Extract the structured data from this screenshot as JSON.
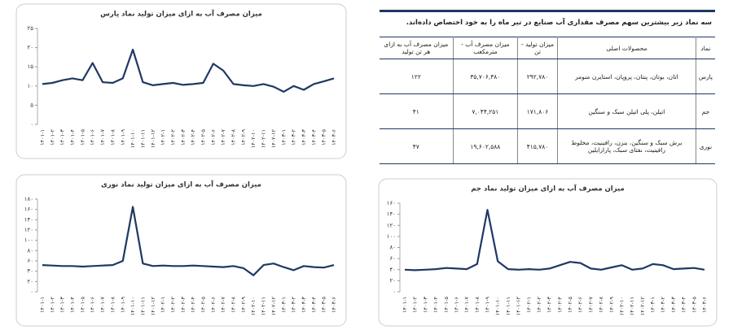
{
  "chart_data": [
    {
      "type": "line",
      "title": "میزان مصرف آب به ازای میزان تولید نماد پارس",
      "color": "#1f3864",
      "categories": [
        "۱۴۰۱-۱",
        "۱۴۰۱-۲",
        "۱۴۰۱-۳",
        "۱۴۰۱-۴",
        "۱۴۰۱-۵",
        "۱۴۰۱-۶",
        "۱۴۰۱-۷",
        "۱۴۰۱-۸",
        "۱۴۰۱-۹",
        "۱۴۰۱-۱۰",
        "۱۴۰۱-۱۱",
        "۱۴۰۱-۱۲",
        "۱۴۰۲-۱",
        "۱۴۰۲-۲",
        "۱۴۰۲-۳",
        "۱۴۰۲-۴",
        "۱۴۰۲-۵",
        "۱۴۰۲-۶",
        "۱۴۰۲-۷",
        "۱۴۰۲-۸",
        "۱۴۰۲-۹",
        "۱۴۰۲-۱۰",
        "۱۴۰۲-۱۱",
        "۱۴۰۲-۱۲",
        "۱۴۰۳-۱",
        "۱۴۰۳-۲",
        "۱۴۰۳-۳",
        "۱۴۰۳-۴",
        "۱۴۰۳-۵",
        "۱۴۰۳-۶"
      ],
      "values": [
        10.5,
        10.8,
        11.5,
        12,
        11.5,
        16,
        11,
        10.8,
        12,
        19.5,
        11,
        10.2,
        10.5,
        10.8,
        10.3,
        10.5,
        10.8,
        15.8,
        14,
        10.5,
        10.2,
        10,
        10.5,
        9.8,
        8.5,
        10,
        9,
        10.5,
        11.2,
        12
      ],
      "ylim": [
        0,
        25
      ],
      "yticks": [
        {
          "value": 0,
          "label": "۰"
        },
        {
          "value": 5,
          "label": "۵"
        },
        {
          "value": 10,
          "label": "۱۰"
        },
        {
          "value": 15,
          "label": "۱۵"
        },
        {
          "value": 20,
          "label": "۲۰"
        },
        {
          "value": 25,
          "label": "۲۵"
        }
      ]
    },
    {
      "type": "line",
      "title": "میزان مصرف آب به ازای میزان تولید نماد نوری",
      "color": "#1f3864",
      "categories": [
        "۱۴۰۱-۱",
        "۱۴۰۱-۲",
        "۱۴۰۱-۳",
        "۱۴۰۱-۴",
        "۱۴۰۱-۵",
        "۱۴۰۱-۶",
        "۱۴۰۱-۷",
        "۱۴۰۱-۸",
        "۱۴۰۱-۹",
        "۱۴۰۱-۱۰",
        "۱۴۰۱-۱۱",
        "۱۴۰۱-۱۲",
        "۱۴۰۲-۱",
        "۱۴۰۲-۲",
        "۱۴۰۲-۳",
        "۱۴۰۲-۴",
        "۱۴۰۲-۵",
        "۱۴۰۲-۶",
        "۱۴۰۲-۷",
        "۱۴۰۲-۸",
        "۱۴۰۲-۹",
        "۱۴۰۲-۱۰",
        "۱۴۰۲-۱۱",
        "۱۴۰۲-۱۲",
        "۱۴۰۳-۱",
        "۱۴۰۳-۲",
        "۱۴۰۳-۳",
        "۱۴۰۳-۴",
        "۱۴۰۳-۵",
        "۱۴۰۳-۶"
      ],
      "values": [
        52,
        51,
        50,
        50,
        49,
        50,
        51,
        52,
        60,
        165,
        55,
        50,
        51,
        50,
        50,
        51,
        50,
        49,
        48,
        50,
        46,
        32,
        52,
        55,
        48,
        42,
        50,
        48,
        47,
        52
      ],
      "ylim": [
        0,
        180
      ],
      "yticks": [
        {
          "value": 0,
          "label": "۰"
        },
        {
          "value": 20,
          "label": "۲۰"
        },
        {
          "value": 40,
          "label": "۴۰"
        },
        {
          "value": 60,
          "label": "۶۰"
        },
        {
          "value": 80,
          "label": "۸۰"
        },
        {
          "value": 100,
          "label": "۱۰۰"
        },
        {
          "value": 120,
          "label": "۱۲۰"
        },
        {
          "value": 140,
          "label": "۱۴۰"
        },
        {
          "value": 160,
          "label": "۱۶۰"
        },
        {
          "value": 180,
          "label": "۱۸۰"
        }
      ]
    },
    {
      "type": "line",
      "title": "میزان مصرف آب به ازای میزان تولید نماد جم",
      "color": "#1f3864",
      "categories": [
        "۱۴۰۱-۱",
        "۱۴۰۱-۲",
        "۱۴۰۱-۳",
        "۱۴۰۱-۴",
        "۱۴۰۱-۵",
        "۱۴۰۱-۶",
        "۱۴۰۱-۷",
        "۱۴۰۱-۸",
        "۱۴۰۱-۹",
        "۱۴۰۱-۱۰",
        "۱۴۰۱-۱۱",
        "۱۴۰۱-۱۲",
        "۱۴۰۲-۱",
        "۱۴۰۲-۲",
        "۱۴۰۲-۳",
        "۱۴۰۲-۴",
        "۱۴۰۲-۵",
        "۱۴۰۲-۶",
        "۱۴۰۲-۷",
        "۱۴۰۲-۸",
        "۱۴۰۲-۹",
        "۱۴۰۲-۱۰",
        "۱۴۰۲-۱۱",
        "۱۴۰۲-۱۲",
        "۱۴۰۳-۱",
        "۱۴۰۳-۲",
        "۱۴۰۳-۳",
        "۱۴۰۳-۴",
        "۱۴۰۳-۵",
        "۱۴۰۳-۶"
      ],
      "values": [
        40,
        39,
        40,
        41,
        43,
        42,
        41,
        50,
        148,
        55,
        41,
        40,
        41,
        40,
        42,
        48,
        54,
        52,
        42,
        40,
        44,
        48,
        40,
        42,
        50,
        48,
        41,
        42,
        43,
        40
      ],
      "ylim": [
        0,
        160
      ],
      "yticks": [
        {
          "value": 0,
          "label": "۰"
        },
        {
          "value": 20,
          "label": "۲۰"
        },
        {
          "value": 40,
          "label": "۴۰"
        },
        {
          "value": 60,
          "label": "۶۰"
        },
        {
          "value": 80,
          "label": "۸۰"
        },
        {
          "value": 100,
          "label": "۱۰۰"
        },
        {
          "value": 120,
          "label": "۱۲۰"
        },
        {
          "value": 140,
          "label": "۱۴۰"
        },
        {
          "value": 160,
          "label": "۱۶۰"
        }
      ]
    }
  ],
  "table": {
    "caption": "سه نماد زیر بیشترین سهم مصرف مقداری آب صنایع در تیر ماه را به خود اختصاص داده‌اند.",
    "header": [
      "نماد",
      "محصولات اصلی",
      "میزان تولید - تن",
      "میزان مصرف آب - مترمکعب",
      "میزان مصرف آب به ازای هر تن تولید"
    ],
    "rows": [
      [
        "پارس",
        "اتان، بوتان، پنتان، پروپان، استایرن منومر",
        "۲۹۲,۷۸۰",
        "۳۵,۷۰۶,۳۸۰",
        "۱۲۲"
      ],
      [
        "جم",
        "اتیلن، پلی اتیلن سبک و سنگین",
        "۱۷۱,۸۰۶",
        "۷,۰۴۴,۲۵۱",
        "۴۱"
      ],
      [
        "نوری",
        "برش سبک و سنگین، بنزن، رافینیت، مخلوط رافینیت، نفتای سبک، پارازایلین",
        "۴۱۵,۷۸۰",
        "۱۹,۶۰۲,۵۸۸",
        "۴۷"
      ]
    ]
  }
}
